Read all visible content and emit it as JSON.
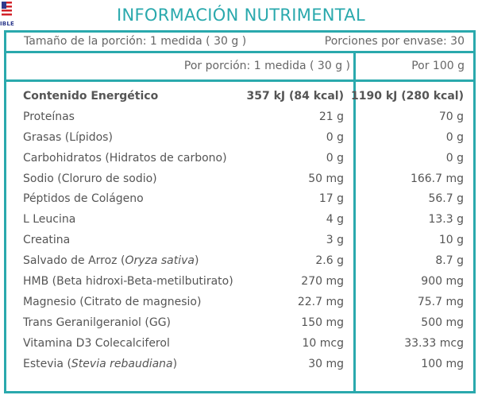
{
  "header": {
    "title": "INFORMACIÓN NUTRIMENTAL",
    "logo_text": "IBLE"
  },
  "serving": {
    "size": "Tamaño de la porción: 1 medida ( 30 g )",
    "per_container": "Porciones por envase: 30"
  },
  "columns": {
    "per_serving": "Por porción: 1 medida ( 30 g )",
    "per_100g": "Por 100 g"
  },
  "rows": [
    {
      "name": "Contenido Energético",
      "per_serving": "357 kJ (84 kcal)",
      "per_100g": "1190 kJ (280 kcal)"
    },
    {
      "name": "Proteínas",
      "per_serving": "21 g",
      "per_100g": "70 g"
    },
    {
      "name": "Grasas (Lípidos)",
      "per_serving": "0 g",
      "per_100g": "0 g"
    },
    {
      "name": "Carbohidratos (Hidratos de carbono)",
      "per_serving": "0 g",
      "per_100g": "0 g"
    },
    {
      "name": "Sodio (Cloruro de sodio)",
      "per_serving": "50 mg",
      "per_100g": "166.7 mg"
    },
    {
      "name": "Péptidos de Colágeno",
      "per_serving": "17 g",
      "per_100g": "56.7 g"
    },
    {
      "name": "L Leucina",
      "per_serving": "4 g",
      "per_100g": "13.3 g"
    },
    {
      "name": "Creatina",
      "per_serving": "3 g",
      "per_100g": "10 g"
    },
    {
      "name": "Salvado de Arroz (",
      "name_sci": "Oryza sativa",
      "name_end": ")",
      "per_serving": "2.6 g",
      "per_100g": "8.7 g"
    },
    {
      "name": "HMB (Beta hidroxi-Beta-metilbutirato)",
      "per_serving": "270 mg",
      "per_100g": "900 mg"
    },
    {
      "name": "Magnesio (Citrato de magnesio)",
      "per_serving": "22.7 mg",
      "per_100g": "75.7 mg"
    },
    {
      "name": "Trans Geranilgeraniol (GG)",
      "per_serving": "150 mg",
      "per_100g": "500 mg"
    },
    {
      "name": "Vitamina D3 Colecalciferol",
      "per_serving": "10 mcg",
      "per_100g": "33.33 mcg"
    },
    {
      "name": "Estevia (",
      "name_sci": "Stevia rebaudiana",
      "name_end": ")",
      "per_serving": "30 mg",
      "per_100g": "100 mg"
    }
  ]
}
